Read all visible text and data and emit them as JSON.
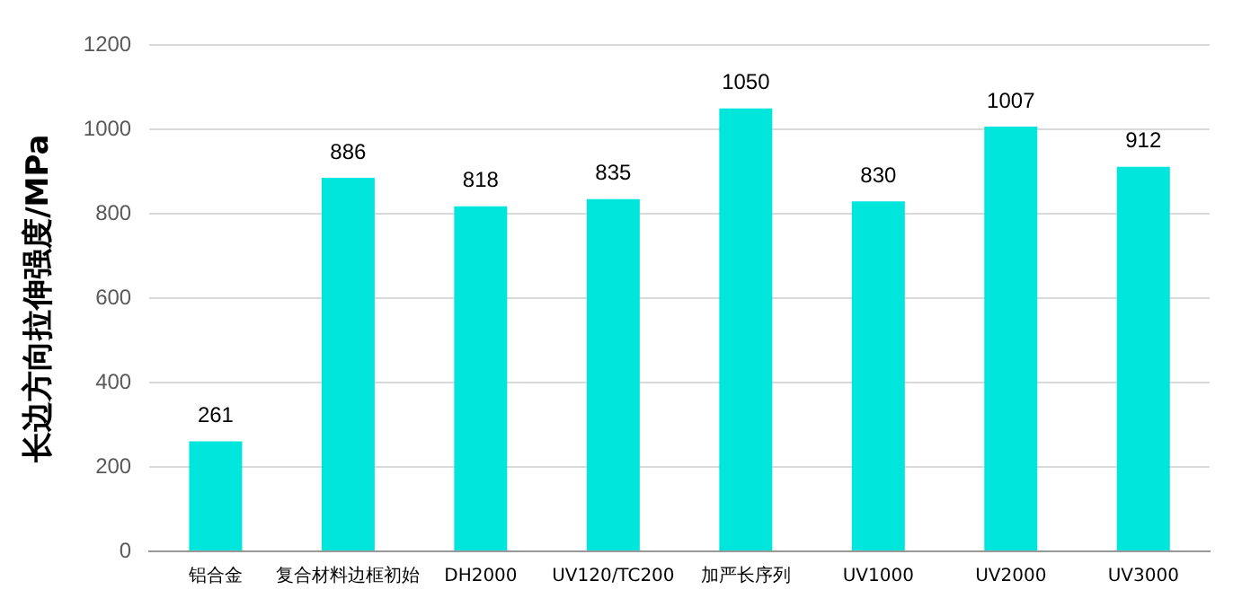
{
  "chart_data": {
    "type": "bar",
    "ylabel": "长边方向拉伸强度/MPa",
    "categories": [
      "铝合金",
      "复合材料边框初始",
      "DH2000",
      "UV120/TC200",
      "加严长序列",
      "UV1000",
      "UV2000",
      "UV3000"
    ],
    "values": [
      261,
      886,
      818,
      835,
      1050,
      830,
      1007,
      912
    ],
    "color": "#00e5dc",
    "ylim": [
      0,
      1200
    ],
    "yticks": [
      0,
      200,
      400,
      600,
      800,
      1000,
      1200
    ],
    "grid": "y",
    "data_labels": true,
    "legend": false
  }
}
